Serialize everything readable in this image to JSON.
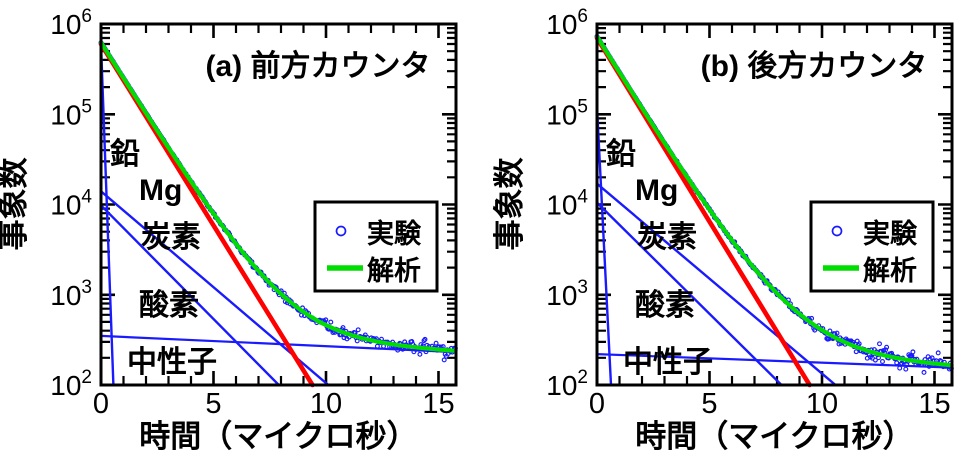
{
  "figure": {
    "background": "#ffffff",
    "kind": "two-panel muon decay time spectrum"
  },
  "colors": {
    "experiment_blue": "#1a1aff",
    "fit_green": "#00dd00",
    "mg_red": "#ff0000",
    "axis_black": "#000000"
  },
  "chart_data": [
    {
      "type": "line",
      "panel_id": "a",
      "title": "(a) 前方カウンタ",
      "xlabel": "時間（マイクロ秒）",
      "ylabel": "事象数",
      "x_range_us": [
        0,
        15.8
      ],
      "y_range_counts": [
        100,
        1000000
      ],
      "y_scale": "log",
      "grid": false,
      "x_major_ticks": [
        {
          "value": 0,
          "label": "0"
        },
        {
          "value": 5,
          "label": "5"
        },
        {
          "value": 10,
          "label": "10"
        },
        {
          "value": 15,
          "label": "15"
        }
      ],
      "x_minor_tick_step_us": 1,
      "y_major_ticks": [
        {
          "value": 100,
          "base": "10",
          "exp": "2"
        },
        {
          "value": 1000,
          "base": "10",
          "exp": "3"
        },
        {
          "value": 10000,
          "base": "10",
          "exp": "4"
        },
        {
          "value": 100000,
          "base": "10",
          "exp": "5"
        },
        {
          "value": 1000000,
          "base": "10",
          "exp": "6"
        }
      ],
      "legend": {
        "position": "right-middle",
        "entries": [
          {
            "label": "実験",
            "symbol": "open-circle",
            "color": "#1a1aff"
          },
          {
            "label": "解析",
            "symbol": "line",
            "color": "#00dd00"
          }
        ]
      },
      "series": [
        {
          "id": "lead",
          "name": "鉛",
          "kind": "component",
          "color": "#1a1aff",
          "counts_at_t0": 600000,
          "t_at_100_counts_us": 0.55,
          "line_width": 2.4
        },
        {
          "id": "carbon",
          "name": "炭素",
          "kind": "component",
          "color": "#1a1aff",
          "counts_at_t0": 14000,
          "t_at_100_counts_us": 10.1,
          "line_width": 2.4
        },
        {
          "id": "oxygen",
          "name": "酸素",
          "kind": "component",
          "color": "#1a1aff",
          "counts_at_t0": 9800,
          "t_at_100_counts_us": 7.9,
          "line_width": 2.4
        },
        {
          "id": "neutron",
          "name": "中性子",
          "kind": "background",
          "color": "#1a1aff",
          "counts_at_t0": 350,
          "counts_at_t16": 230,
          "line_width": 2.2
        },
        {
          "id": "mg",
          "name": "Mg",
          "kind": "component",
          "color": "#ff0000",
          "counts_at_t0": 600000,
          "t_at_100_counts_us": 9.4,
          "line_width": 4.6
        },
        {
          "id": "fit",
          "name": "解析",
          "kind": "fit",
          "color": "#00dd00",
          "composition": "Mg+炭素+酸素+中性子",
          "line_width": 4.2
        },
        {
          "id": "data",
          "name": "実験",
          "kind": "data",
          "color": "#1a1aff",
          "marker": "open-circle",
          "tail_counts": 230
        }
      ]
    },
    {
      "type": "line",
      "panel_id": "b",
      "title": "(b) 後方カウンタ",
      "xlabel": "時間（マイクロ秒）",
      "ylabel": "事象数",
      "x_range_us": [
        0,
        15.8
      ],
      "y_range_counts": [
        100,
        1000000
      ],
      "y_scale": "log",
      "grid": false,
      "x_major_ticks": [
        {
          "value": 0,
          "label": "0"
        },
        {
          "value": 5,
          "label": "5"
        },
        {
          "value": 10,
          "label": "10"
        },
        {
          "value": 15,
          "label": "15"
        }
      ],
      "x_minor_tick_step_us": 1,
      "y_major_ticks": [
        {
          "value": 100,
          "base": "10",
          "exp": "2"
        },
        {
          "value": 1000,
          "base": "10",
          "exp": "3"
        },
        {
          "value": 10000,
          "base": "10",
          "exp": "4"
        },
        {
          "value": 100000,
          "base": "10",
          "exp": "5"
        },
        {
          "value": 1000000,
          "base": "10",
          "exp": "6"
        }
      ],
      "legend": {
        "position": "right-middle",
        "entries": [
          {
            "label": "実験",
            "symbol": "open-circle",
            "color": "#1a1aff"
          },
          {
            "label": "解析",
            "symbol": "line",
            "color": "#00dd00"
          }
        ]
      },
      "series": [
        {
          "id": "lead",
          "name": "鉛",
          "kind": "component",
          "color": "#1a1aff",
          "counts_at_t0": 120000,
          "t_at_100_counts_us": 0.62,
          "line_width": 2.4
        },
        {
          "id": "carbon",
          "name": "炭素",
          "kind": "component",
          "color": "#1a1aff",
          "counts_at_t0": 17000,
          "t_at_100_counts_us": 10.6,
          "line_width": 2.4
        },
        {
          "id": "oxygen",
          "name": "酸素",
          "kind": "component",
          "color": "#1a1aff",
          "counts_at_t0": 10500,
          "t_at_100_counts_us": 8.2,
          "line_width": 2.4
        },
        {
          "id": "neutron",
          "name": "中性子",
          "kind": "background",
          "color": "#1a1aff",
          "counts_at_t0": 220,
          "counts_at_t16": 155,
          "line_width": 2.2
        },
        {
          "id": "mg",
          "name": "Mg",
          "kind": "component",
          "color": "#ff0000",
          "counts_at_t0": 700000,
          "t_at_100_counts_us": 9.45,
          "line_width": 4.6
        },
        {
          "id": "fit",
          "name": "解析",
          "kind": "fit",
          "color": "#00dd00",
          "composition": "Mg+炭素+酸素+中性子",
          "line_width": 4.2
        },
        {
          "id": "data",
          "name": "実験",
          "kind": "data",
          "color": "#1a1aff",
          "marker": "open-circle",
          "tail_counts": 160
        }
      ]
    }
  ]
}
